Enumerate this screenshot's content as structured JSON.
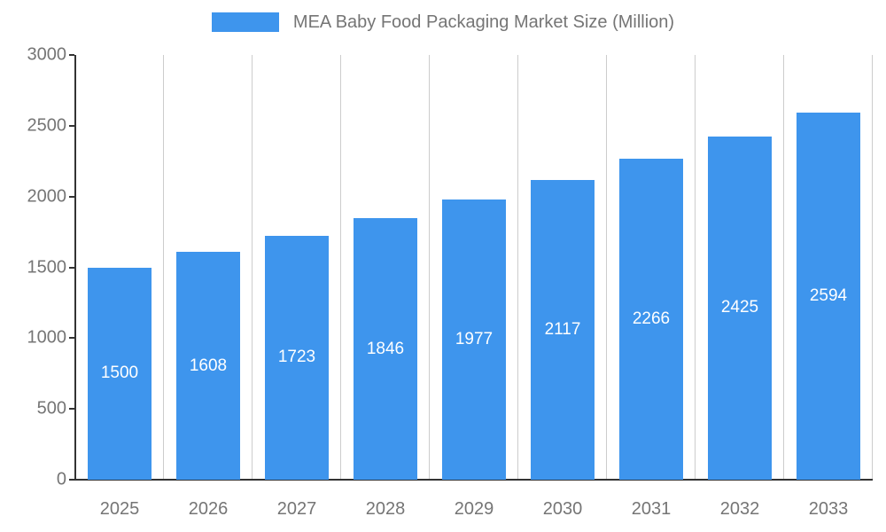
{
  "chart_data": {
    "type": "bar",
    "title": "MEA Baby Food Packaging Market Size (Million)",
    "categories": [
      "2025",
      "2026",
      "2027",
      "2028",
      "2029",
      "2030",
      "2031",
      "2032",
      "2033"
    ],
    "values": [
      1500,
      1608,
      1723,
      1846,
      1977,
      2117,
      2266,
      2425,
      2594
    ],
    "series_name": "MEA Baby Food Packaging Market Size (Million)",
    "xlabel": "",
    "ylabel": "",
    "ylim": [
      0,
      3000
    ],
    "yticks": [
      0,
      500,
      1000,
      1500,
      2000,
      2500,
      3000
    ],
    "grid": "vertical-only",
    "legend_position": "top-center",
    "data_labels": "inside-center-white",
    "colors": {
      "bar": "#3e95ed",
      "bar_label": "#ffffff",
      "axis_text": "#757575",
      "title_text": "#757575",
      "gridline": "#cccccc",
      "axis_line": "#333333",
      "background": "#ffffff"
    }
  }
}
